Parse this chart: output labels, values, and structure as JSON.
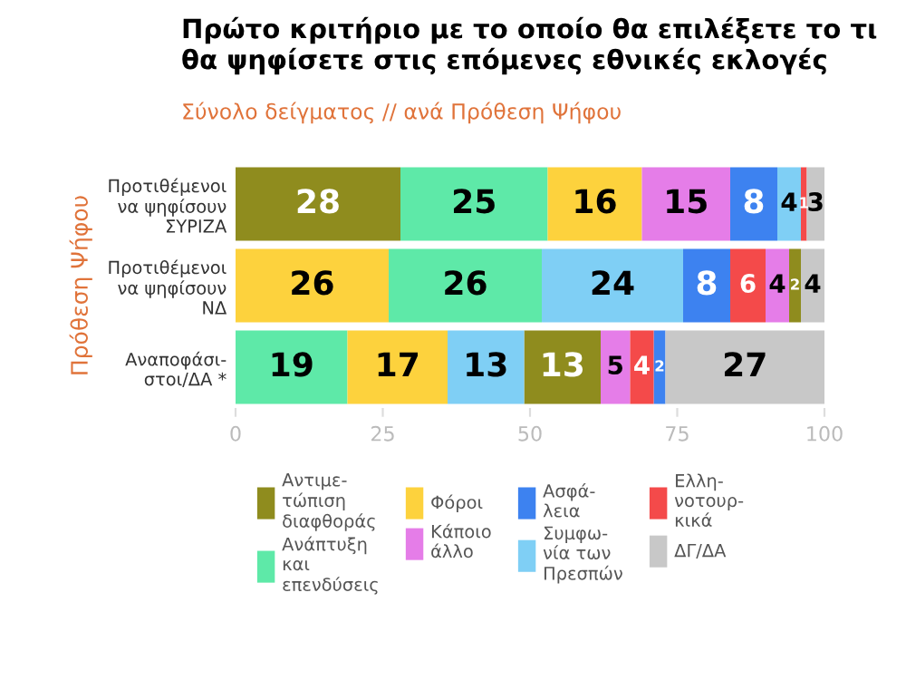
{
  "chart_data": {
    "type": "bar",
    "orientation": "horizontal",
    "title": "Πρώτο κριτήριο με το οποίο θα επιλέξετε το τι\nθα ψηφίσετε στις επόμενες εθνικές εκλογές",
    "subtitle": "Σύνολο δείγματος // ανά Πρόθεση Ψήφου",
    "ylabel": "Πρόθεση Ψήφου",
    "categories": [
      "Προτιθέμενοι\nνα ψηφίσουν\nΣΥΡΙΖΑ",
      "Προτιθέμενοι\nνα ψηφίσουν\nΝΔ",
      "Αναποφάσι-\nστοι/ΔΑ *"
    ],
    "series": [
      {
        "name": "Αντιμε-\nτώπιση\nδιαφθοράς",
        "color": "#8f8c1e",
        "values": [
          28,
          2,
          13
        ],
        "base": [
          0,
          94,
          49
        ]
      },
      {
        "name": "Ανάπτυξη\nκαι\nεπενδύσεις",
        "color": "#5ee9a8",
        "values": [
          25,
          26,
          19
        ],
        "base": [
          28,
          26,
          0
        ]
      },
      {
        "name": "Φόροι",
        "color": "#fdd23d",
        "values": [
          16,
          26,
          17
        ],
        "base": [
          53,
          0,
          19
        ]
      },
      {
        "name": "Κάποιο\nάλλο",
        "color": "#e57de8",
        "values": [
          15,
          4,
          5
        ],
        "base": [
          69,
          90,
          62
        ]
      },
      {
        "name": "Ασφά-\nλεια",
        "color": "#3d82f0",
        "values": [
          8,
          8,
          2
        ],
        "base": [
          84,
          76,
          71
        ]
      },
      {
        "name": "Συμφω-\nνία των\nΠρεσπών",
        "color": "#7fcff5",
        "values": [
          4,
          24,
          13
        ],
        "base": [
          92,
          52,
          36
        ]
      },
      {
        "name": "Ελλη-\nνοτουρ-\nκικά",
        "color": "#f44a4a",
        "values": [
          1,
          6,
          4
        ],
        "base": [
          96,
          84,
          67
        ]
      },
      {
        "name": "ΔΓ/ΔΑ",
        "color": "#c8c8c8",
        "values": [
          3,
          4,
          27
        ],
        "base": [
          97,
          96,
          73
        ]
      }
    ],
    "xlim": [
      0,
      100
    ],
    "xticks": [
      0,
      25,
      50,
      75,
      100
    ],
    "data_labels": true,
    "legend": "bottom"
  }
}
